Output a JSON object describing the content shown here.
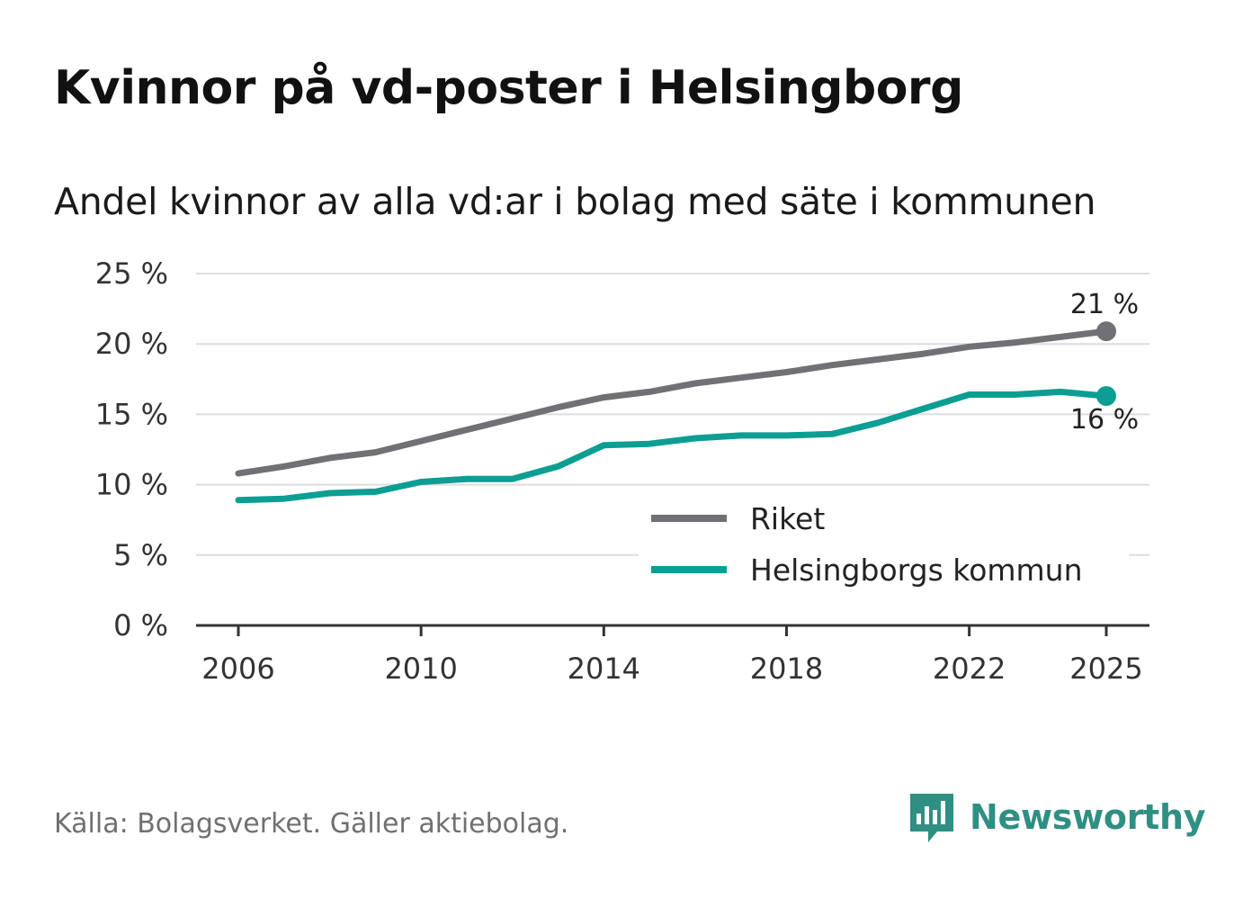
{
  "title": "Kvinnor på vd-poster i Helsingborg",
  "subtitle": "Andel kvinnor av alla vd:ar i bolag med säte i kommunen",
  "source": "Källa: Bolagsverket. Gäller aktiebolag.",
  "logo": {
    "text": "Newsworthy",
    "icon": "newsworthy-logo-icon"
  },
  "colors": {
    "riket": "#707075",
    "helsingborg": "#0c9e92",
    "grid": "#dddddd",
    "axis": "#333333"
  },
  "chart_data": {
    "type": "line",
    "title": "Andel kvinnor av alla vd:ar i bolag med säte i kommunen",
    "xlabel": "",
    "ylabel": "",
    "x": [
      2006,
      2007,
      2008,
      2009,
      2010,
      2011,
      2012,
      2013,
      2014,
      2015,
      2016,
      2017,
      2018,
      2019,
      2020,
      2021,
      2022,
      2023,
      2024,
      2025
    ],
    "x_ticks": [
      2006,
      2010,
      2014,
      2018,
      2022,
      2025
    ],
    "y_ticks": [
      0,
      5,
      10,
      15,
      20,
      25
    ],
    "y_tick_labels": [
      "0 %",
      "5 %",
      "10 %",
      "15 %",
      "20 %",
      "25 %"
    ],
    "ylim": [
      0,
      25
    ],
    "grid": true,
    "legend_position": "bottom-right",
    "series": [
      {
        "name": "Riket",
        "color": "#707075",
        "values": [
          10.8,
          11.3,
          11.9,
          12.3,
          13.1,
          13.9,
          14.7,
          15.5,
          16.2,
          16.6,
          17.2,
          17.6,
          18.0,
          18.5,
          18.9,
          19.3,
          19.8,
          20.1,
          20.5,
          20.9
        ],
        "end_label": "21 %"
      },
      {
        "name": "Helsingborgs kommun",
        "color": "#0c9e92",
        "values": [
          8.9,
          9.0,
          9.4,
          9.5,
          10.2,
          10.4,
          10.4,
          11.3,
          12.8,
          12.9,
          13.3,
          13.5,
          13.5,
          13.6,
          14.4,
          15.4,
          16.4,
          16.4,
          16.6,
          16.3
        ],
        "end_label": "16 %"
      }
    ]
  }
}
